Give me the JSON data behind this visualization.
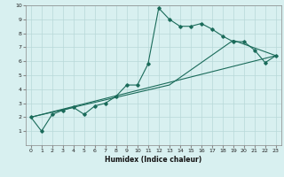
{
  "xlabel": "Humidex (Indice chaleur)",
  "bg_color": "#d8f0f0",
  "grid_color": "#b8d8d8",
  "line_color": "#1a6b5a",
  "xlim": [
    -0.5,
    23.5
  ],
  "ylim": [
    0,
    10
  ],
  "xticks": [
    0,
    1,
    2,
    3,
    4,
    5,
    6,
    7,
    8,
    9,
    10,
    11,
    12,
    13,
    14,
    15,
    16,
    17,
    18,
    19,
    20,
    21,
    22,
    23
  ],
  "yticks": [
    1,
    2,
    3,
    4,
    5,
    6,
    7,
    8,
    9,
    10
  ],
  "series1_x": [
    0,
    1,
    2,
    3,
    4,
    5,
    6,
    7,
    8,
    9,
    10,
    11,
    12,
    13,
    14,
    15,
    16,
    17,
    18,
    19,
    20,
    21,
    22,
    23
  ],
  "series1_y": [
    2.0,
    1.0,
    2.2,
    2.5,
    2.7,
    2.2,
    2.8,
    3.0,
    3.5,
    4.3,
    4.3,
    5.8,
    9.8,
    9.0,
    8.5,
    8.5,
    8.7,
    8.3,
    7.8,
    7.4,
    7.4,
    6.8,
    5.9,
    6.4
  ],
  "series2_x": [
    0,
    23
  ],
  "series2_y": [
    2.0,
    6.4
  ],
  "series3_x": [
    0,
    13,
    19,
    23
  ],
  "series3_y": [
    2.0,
    4.3,
    7.5,
    6.4
  ]
}
